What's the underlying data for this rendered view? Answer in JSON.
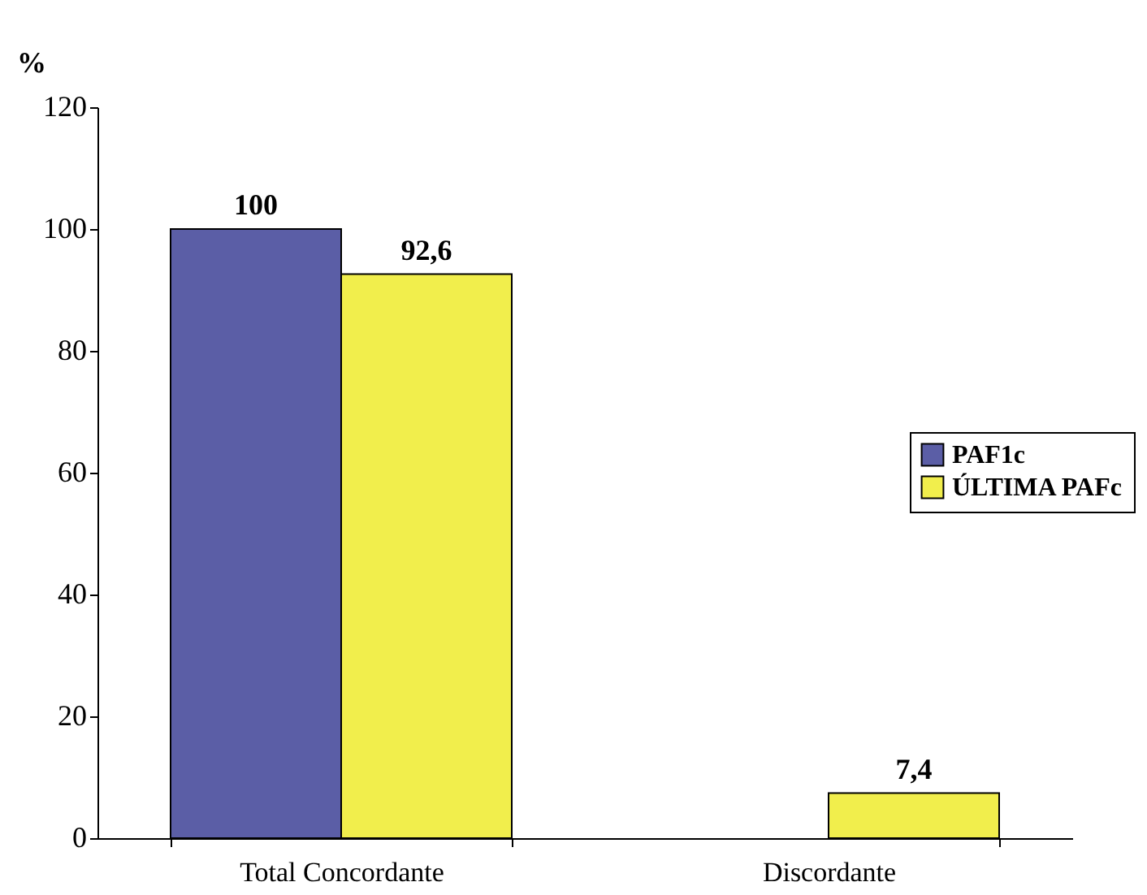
{
  "chart_data": {
    "type": "bar",
    "ylabel": "%",
    "categories": [
      "Total  Concordante",
      "Discordante"
    ],
    "series": [
      {
        "name": "PAF1c",
        "color": "#5b5ea6",
        "values": [
          100,
          null
        ],
        "value_labels": [
          "100",
          null
        ]
      },
      {
        "name": "ÚLTIMA PAFc",
        "color": "#f1ee4c",
        "values": [
          92.6,
          7.4
        ],
        "value_labels": [
          "92,6",
          "7,4"
        ]
      }
    ],
    "ylim": [
      0,
      120
    ],
    "yticks": [
      0,
      20,
      40,
      60,
      80,
      100,
      120
    ],
    "grid": false,
    "legend": "right"
  }
}
